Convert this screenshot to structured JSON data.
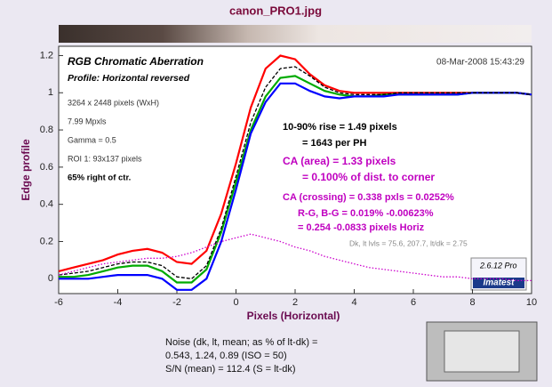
{
  "chart_data": {
    "type": "line",
    "window_title": "canon_PRO1.jpg",
    "title": "RGB Chromatic Aberration",
    "subtitle": "Profile: Horizontal reversed",
    "xlabel": "Pixels (Horizontal)",
    "ylabel": "Edge profile",
    "xlim": [
      -6,
      10
    ],
    "ylim": [
      -0.08,
      1.25
    ],
    "xticks": [
      -6,
      -4,
      -2,
      0,
      2,
      4,
      6,
      8,
      10
    ],
    "yticks": [
      0,
      0.2,
      0.4,
      0.6,
      0.8,
      1,
      1.2
    ],
    "grid": false,
    "x": [
      -6,
      -5.5,
      -5,
      -4.5,
      -4,
      -3.5,
      -3,
      -2.5,
      -2,
      -1.5,
      -1,
      -0.5,
      0,
      0.5,
      1,
      1.5,
      2,
      2.5,
      3,
      3.5,
      4,
      4.5,
      5,
      5.5,
      6,
      6.5,
      7,
      7.5,
      8,
      8.5,
      9,
      9.5,
      10
    ],
    "series": [
      {
        "color": "#ff0000",
        "style": "solid",
        "values": [
          0.04,
          0.06,
          0.08,
          0.1,
          0.13,
          0.15,
          0.16,
          0.14,
          0.09,
          0.08,
          0.15,
          0.35,
          0.62,
          0.92,
          1.13,
          1.2,
          1.18,
          1.1,
          1.04,
          1.01,
          1.0,
          1.0,
          1.0,
          1.0,
          1.0,
          1.0,
          1.0,
          1.0,
          1.0,
          1.0,
          1.0,
          1.0,
          0.99
        ]
      },
      {
        "color": "#00aa00",
        "style": "solid",
        "values": [
          0.01,
          0.01,
          0.02,
          0.04,
          0.06,
          0.07,
          0.07,
          0.04,
          -0.02,
          -0.02,
          0.05,
          0.25,
          0.52,
          0.8,
          0.98,
          1.08,
          1.09,
          1.05,
          1.01,
          0.99,
          0.98,
          0.98,
          0.99,
          0.99,
          0.99,
          0.99,
          0.99,
          0.99,
          1.0,
          1.0,
          1.0,
          1.0,
          0.99
        ]
      },
      {
        "color": "#0000ff",
        "style": "solid",
        "values": [
          0.0,
          0.0,
          0.0,
          0.01,
          0.02,
          0.02,
          0.02,
          0.0,
          -0.06,
          -0.06,
          0.0,
          0.2,
          0.48,
          0.78,
          0.95,
          1.05,
          1.05,
          1.01,
          0.98,
          0.97,
          0.98,
          0.98,
          0.98,
          0.99,
          0.99,
          0.99,
          0.99,
          0.99,
          1.0,
          1.0,
          1.0,
          1.0,
          0.99
        ]
      },
      {
        "color": "#000000",
        "style": "dashed",
        "values": [
          0.02,
          0.03,
          0.04,
          0.06,
          0.08,
          0.09,
          0.09,
          0.07,
          0.01,
          0.0,
          0.07,
          0.27,
          0.55,
          0.84,
          1.03,
          1.13,
          1.14,
          1.09,
          1.03,
          1.0,
          0.99,
          0.99,
          0.99,
          1.0,
          1.0,
          1.0,
          1.0,
          1.0,
          1.0,
          1.0,
          1.0,
          1.0,
          0.99
        ]
      },
      {
        "color": "#cc00cc",
        "style": "dotted",
        "values": [
          0.02,
          0.04,
          0.06,
          0.08,
          0.09,
          0.1,
          0.11,
          0.11,
          0.12,
          0.14,
          0.17,
          0.2,
          0.22,
          0.24,
          0.22,
          0.2,
          0.17,
          0.15,
          0.12,
          0.1,
          0.08,
          0.06,
          0.05,
          0.04,
          0.03,
          0.02,
          0.01,
          0.01,
          0.0,
          0.0,
          0.0,
          -0.01,
          -0.01
        ]
      }
    ],
    "annotations": [
      "08-Mar-2008 15:43:29",
      "3264 x 2448 pixels (WxH)",
      "7.99 Mpxls",
      "Gamma = 0.5",
      "ROI 1: 93x137 pixels",
      "65% right of ctr.",
      "10-90% rise = 1.49 pixels",
      "= 1643 per PH",
      "CA (area) = 1.33 pixels",
      "= 0.100% of dist. to corner",
      "CA (crossing) = 0.338 pxls = 0.0252%",
      "R-G, B-G = 0.019%  -0.00623%",
      "= 0.254  -0.0833 pixels Horiz",
      "Dk, lt lvls = 75.6, 207.7,  lt/dk = 2.75",
      "2.6.12  Pro",
      "Imatest"
    ],
    "noise_text": [
      "Noise (dk, lt, mean; as % of lt-dk) =",
      "0.543, 1.24, 0.89  (ISO = 50)",
      "S/N (mean) = 112.4  (S = lt-dk)"
    ]
  }
}
